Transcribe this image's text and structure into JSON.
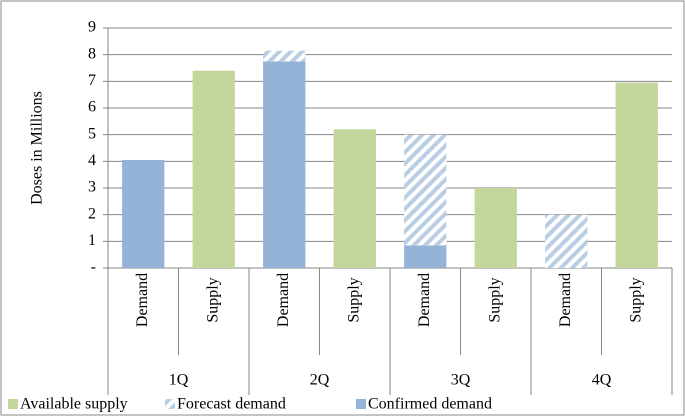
{
  "chart_data": {
    "type": "stacked-bar",
    "y_label": "Doses in Millions",
    "groups": [
      "1Q",
      "2Q",
      "3Q",
      "4Q"
    ],
    "categories": [
      "Demand",
      "Supply",
      "Demand",
      "Supply",
      "Demand",
      "Supply",
      "Demand",
      "Supply"
    ],
    "series": [
      {
        "name": "Available supply",
        "color": "#c3d69b",
        "values": [
          null,
          7.4,
          null,
          5.2,
          null,
          3.0,
          null,
          6.95
        ]
      },
      {
        "name": "Forecast demand",
        "color": "#b9cde5",
        "hatch": true,
        "values": [
          0,
          null,
          0.4,
          null,
          4.15,
          null,
          2.0,
          null
        ]
      },
      {
        "name": "Confirmed demand",
        "color": "#95b3d7",
        "values": [
          4.05,
          null,
          7.75,
          null,
          0.85,
          null,
          0,
          null
        ]
      }
    ],
    "ylim": [
      0,
      9
    ],
    "yticks": [
      {
        "value": 0,
        "label": "-"
      },
      1,
      2,
      3,
      4,
      5,
      6,
      7,
      8,
      9
    ],
    "grid": true,
    "legend": "bottom"
  }
}
